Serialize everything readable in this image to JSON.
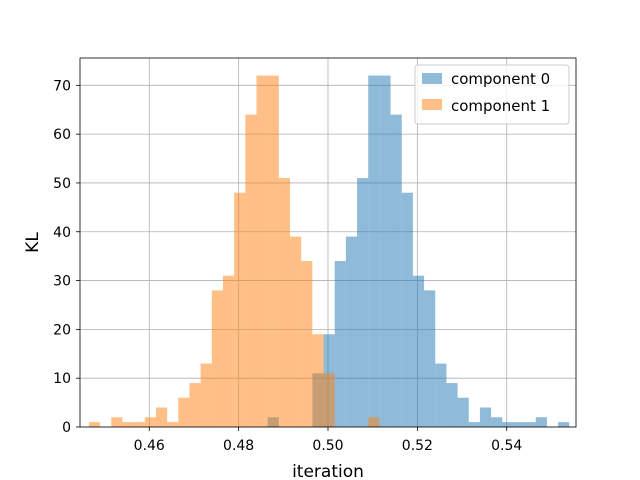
{
  "chart_data": {
    "type": "bar",
    "title": "",
    "xlabel": "iteration",
    "ylabel": "KL",
    "xlim": [
      0.4445,
      0.5555
    ],
    "ylim": [
      0,
      75.6
    ],
    "xticks": [
      0.46,
      0.48,
      0.5,
      0.52,
      0.54
    ],
    "xtick_labels": [
      "0.46",
      "0.48",
      "0.50",
      "0.52",
      "0.54"
    ],
    "yticks": [
      0,
      10,
      20,
      30,
      40,
      50,
      60,
      70
    ],
    "ytick_labels": [
      "0",
      "10",
      "20",
      "30",
      "40",
      "50",
      "60",
      "70"
    ],
    "grid": true,
    "legend_position": "top-right",
    "series": [
      {
        "name": "component 0",
        "color": "#1f77b4",
        "alpha": 0.5,
        "bins": [
          {
            "x0": 0.4865,
            "x1": 0.489,
            "count": 2
          },
          {
            "x0": 0.4965,
            "x1": 0.499,
            "count": 11
          },
          {
            "x0": 0.499,
            "x1": 0.5015,
            "count": 19
          },
          {
            "x0": 0.5015,
            "x1": 0.504,
            "count": 34
          },
          {
            "x0": 0.504,
            "x1": 0.5065,
            "count": 39
          },
          {
            "x0": 0.5065,
            "x1": 0.509,
            "count": 51
          },
          {
            "x0": 0.509,
            "x1": 0.5115,
            "count": 72
          },
          {
            "x0": 0.5115,
            "x1": 0.514,
            "count": 72
          },
          {
            "x0": 0.514,
            "x1": 0.5165,
            "count": 64
          },
          {
            "x0": 0.5165,
            "x1": 0.519,
            "count": 48
          },
          {
            "x0": 0.519,
            "x1": 0.5215,
            "count": 31
          },
          {
            "x0": 0.5215,
            "x1": 0.524,
            "count": 28
          },
          {
            "x0": 0.524,
            "x1": 0.5265,
            "count": 13
          },
          {
            "x0": 0.5265,
            "x1": 0.529,
            "count": 9
          },
          {
            "x0": 0.529,
            "x1": 0.5315,
            "count": 6
          },
          {
            "x0": 0.5315,
            "x1": 0.534,
            "count": 1
          },
          {
            "x0": 0.534,
            "x1": 0.5365,
            "count": 4
          },
          {
            "x0": 0.5365,
            "x1": 0.539,
            "count": 2
          },
          {
            "x0": 0.539,
            "x1": 0.5415,
            "count": 1
          },
          {
            "x0": 0.5415,
            "x1": 0.544,
            "count": 1
          },
          {
            "x0": 0.544,
            "x1": 0.5465,
            "count": 1
          },
          {
            "x0": 0.5465,
            "x1": 0.549,
            "count": 2
          },
          {
            "x0": 0.5515,
            "x1": 0.554,
            "count": 1
          }
        ]
      },
      {
        "name": "component 1",
        "color": "#ff7f0e",
        "alpha": 0.5,
        "bins": [
          {
            "x0": 0.4465,
            "x1": 0.449,
            "count": 1
          },
          {
            "x0": 0.4515,
            "x1": 0.454,
            "count": 2
          },
          {
            "x0": 0.454,
            "x1": 0.4565,
            "count": 1
          },
          {
            "x0": 0.4565,
            "x1": 0.459,
            "count": 1
          },
          {
            "x0": 0.459,
            "x1": 0.4615,
            "count": 2
          },
          {
            "x0": 0.4615,
            "x1": 0.464,
            "count": 4
          },
          {
            "x0": 0.464,
            "x1": 0.4665,
            "count": 1
          },
          {
            "x0": 0.4665,
            "x1": 0.469,
            "count": 6
          },
          {
            "x0": 0.469,
            "x1": 0.4715,
            "count": 9
          },
          {
            "x0": 0.4715,
            "x1": 0.474,
            "count": 13
          },
          {
            "x0": 0.474,
            "x1": 0.4765,
            "count": 28
          },
          {
            "x0": 0.4765,
            "x1": 0.479,
            "count": 31
          },
          {
            "x0": 0.479,
            "x1": 0.4815,
            "count": 48
          },
          {
            "x0": 0.4815,
            "x1": 0.484,
            "count": 64
          },
          {
            "x0": 0.484,
            "x1": 0.4865,
            "count": 72
          },
          {
            "x0": 0.4865,
            "x1": 0.489,
            "count": 72
          },
          {
            "x0": 0.489,
            "x1": 0.4915,
            "count": 51
          },
          {
            "x0": 0.4915,
            "x1": 0.494,
            "count": 39
          },
          {
            "x0": 0.494,
            "x1": 0.4965,
            "count": 34
          },
          {
            "x0": 0.4965,
            "x1": 0.499,
            "count": 19
          },
          {
            "x0": 0.499,
            "x1": 0.5015,
            "count": 11
          },
          {
            "x0": 0.509,
            "x1": 0.5115,
            "count": 2
          }
        ]
      }
    ]
  }
}
